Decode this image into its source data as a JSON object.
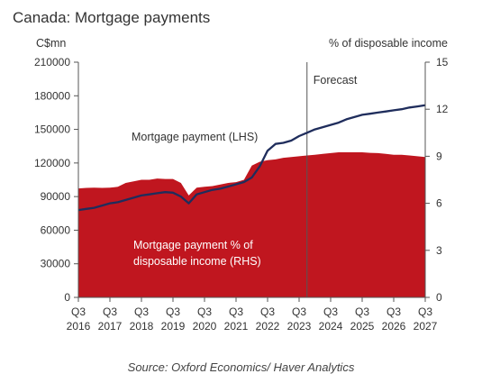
{
  "chart_data": {
    "type": "line+area",
    "title": "Canada: Mortgage payments",
    "y_left_label": "C$mn",
    "y_right_label": "% of disposable income",
    "y_left_ticks": [
      "210000",
      "180000",
      "150000",
      "120000",
      "90000",
      "60000",
      "30000",
      "0"
    ],
    "y_right_ticks": [
      "15",
      "12",
      "9",
      "6",
      "3",
      "0"
    ],
    "y_left_range": [
      0,
      210000
    ],
    "y_right_range": [
      0,
      15
    ],
    "x_tick_quarters": [
      "Q3",
      "Q3",
      "Q3",
      "Q3",
      "Q3",
      "Q3",
      "Q3",
      "Q3",
      "Q3",
      "Q3",
      "Q3",
      "Q3"
    ],
    "x_tick_years": [
      "2016",
      "2017",
      "2018",
      "2019",
      "2020",
      "2021",
      "2022",
      "2023",
      "2024",
      "2025",
      "2026",
      "2027"
    ],
    "forecast_label": "Forecast",
    "forecast_start": 2023.75,
    "series": [
      {
        "name": "Mortgage payment (LHS)",
        "axis": "left",
        "color": "#1f2d5c",
        "x": [
          2016.5,
          2016.75,
          2017,
          2017.25,
          2017.5,
          2017.75,
          2018,
          2018.25,
          2018.5,
          2018.75,
          2019,
          2019.25,
          2019.5,
          2019.75,
          2020,
          2020.25,
          2020.5,
          2020.75,
          2021,
          2021.25,
          2021.5,
          2021.75,
          2022,
          2022.25,
          2022.5,
          2022.75,
          2023,
          2023.25,
          2023.5,
          2023.75,
          2024,
          2024.25,
          2024.5,
          2024.75,
          2025,
          2025.25,
          2025.5,
          2025.75,
          2026,
          2026.25,
          2026.5,
          2026.75,
          2027,
          2027.25,
          2027.5
        ],
        "values": [
          78000,
          79000,
          80000,
          82000,
          84000,
          85000,
          87000,
          89000,
          91000,
          92000,
          93000,
          94000,
          93500,
          90000,
          84000,
          92000,
          94000,
          96000,
          97000,
          99000,
          101000,
          103000,
          107000,
          117000,
          131000,
          137000,
          138000,
          140000,
          144000,
          147000,
          150000,
          152000,
          154000,
          156000,
          159000,
          161000,
          163000,
          164000,
          165000,
          166000,
          167000,
          168000,
          169500,
          170500,
          171500
        ]
      },
      {
        "name": "Mortgage payment % of disposable income (RHS)",
        "axis": "right",
        "color": "#c0161f",
        "x": [
          2016.5,
          2016.75,
          2017,
          2017.25,
          2017.5,
          2017.75,
          2018,
          2018.25,
          2018.5,
          2018.75,
          2019,
          2019.25,
          2019.5,
          2019.75,
          2020,
          2020.25,
          2020.5,
          2020.75,
          2021,
          2021.25,
          2021.5,
          2021.75,
          2022,
          2022.25,
          2022.5,
          2022.75,
          2023,
          2023.25,
          2023.5,
          2023.75,
          2024,
          2024.25,
          2024.5,
          2024.75,
          2025,
          2025.25,
          2025.5,
          2025.75,
          2026,
          2026.25,
          2026.5,
          2026.75,
          2027,
          2027.25,
          2027.5
        ],
        "values": [
          6.95,
          6.98,
          7.0,
          6.98,
          7.0,
          7.05,
          7.3,
          7.4,
          7.5,
          7.5,
          7.58,
          7.55,
          7.55,
          7.3,
          6.5,
          7.0,
          7.05,
          7.1,
          7.2,
          7.3,
          7.35,
          7.5,
          8.4,
          8.65,
          8.75,
          8.8,
          8.9,
          8.95,
          9.0,
          9.05,
          9.1,
          9.15,
          9.2,
          9.25,
          9.25,
          9.25,
          9.25,
          9.22,
          9.2,
          9.15,
          9.1,
          9.1,
          9.05,
          9.0,
          8.95
        ]
      }
    ],
    "annotations": {
      "line_label": "Mortgage payment (LHS)",
      "area_label_1": "Mortgage payment % of",
      "area_label_2": "disposable income (RHS)"
    },
    "source": "Source: Oxford Economics/ Haver Analytics"
  }
}
